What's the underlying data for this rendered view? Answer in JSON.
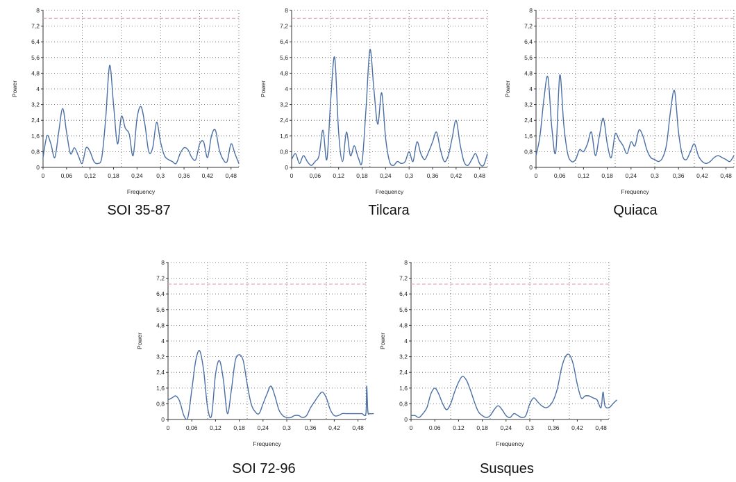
{
  "chart_data": [
    {
      "type": "line",
      "caption": "SOI 35-87",
      "xlabel": "Frequency",
      "ylabel": "Power",
      "xlim": [
        0,
        0.5
      ],
      "ylim": [
        0,
        8
      ],
      "xticks": [
        "0",
        "0,06",
        "0,12",
        "0,18",
        "0,24",
        "0,3",
        "0,36",
        "0,42",
        "0,48"
      ],
      "yticks": [
        "0",
        "0,8",
        "1,6",
        "2,4",
        "3,2",
        "4",
        "4,8",
        "5,6",
        "6,4",
        "7,2",
        "8"
      ],
      "grid": true,
      "threshold": 7.6,
      "series_color": "#4a6fa5",
      "threshold_color": "#e8a0b8",
      "series": [
        {
          "x": [
            0,
            0.01,
            0.02,
            0.03,
            0.04,
            0.05,
            0.06,
            0.07,
            0.08,
            0.09,
            0.1,
            0.11,
            0.12,
            0.13,
            0.14,
            0.15,
            0.16,
            0.17,
            0.18,
            0.19,
            0.2,
            0.21,
            0.22,
            0.23,
            0.24,
            0.25,
            0.26,
            0.27,
            0.28,
            0.29,
            0.3,
            0.31,
            0.32,
            0.33,
            0.34,
            0.35,
            0.36,
            0.37,
            0.38,
            0.39,
            0.4,
            0.41,
            0.42,
            0.43,
            0.44,
            0.45,
            0.46,
            0.47,
            0.48,
            0.49,
            0.5
          ],
          "y": [
            0.5,
            1.6,
            1.2,
            0.5,
            1.8,
            3.0,
            1.8,
            0.7,
            1.0,
            0.6,
            0.2,
            1.0,
            0.8,
            0.3,
            0.2,
            0.5,
            2.5,
            5.2,
            3.2,
            1.2,
            2.6,
            2.0,
            1.7,
            0.6,
            2.5,
            3.1,
            2.2,
            0.8,
            1.0,
            2.3,
            1.3,
            0.6,
            0.4,
            0.3,
            0.2,
            0.7,
            1.0,
            0.9,
            0.5,
            0.4,
            1.2,
            1.3,
            0.5,
            1.6,
            1.9,
            0.9,
            0.4,
            0.3,
            1.2,
            0.7,
            0.2
          ]
        }
      ]
    },
    {
      "type": "line",
      "caption": "Tilcara",
      "xlabel": "Frequency",
      "ylabel": "Power",
      "xlim": [
        0,
        0.5
      ],
      "ylim": [
        0,
        8
      ],
      "xticks": [
        "0",
        "0,06",
        "0,12",
        "0,18",
        "0,24",
        "0,3",
        "0,36",
        "0,42",
        "0,48"
      ],
      "yticks": [
        "0",
        "0,8",
        "1,6",
        "2,4",
        "3,2",
        "4",
        "4,8",
        "5,6",
        "6,4",
        "7,2",
        "8"
      ],
      "grid": true,
      "threshold": 7.6,
      "series_color": "#4a6fa5",
      "threshold_color": "#e8a0b8",
      "series": [
        {
          "x": [
            0,
            0.01,
            0.02,
            0.03,
            0.04,
            0.05,
            0.06,
            0.07,
            0.08,
            0.09,
            0.1,
            0.11,
            0.12,
            0.13,
            0.14,
            0.15,
            0.16,
            0.17,
            0.18,
            0.19,
            0.2,
            0.21,
            0.22,
            0.23,
            0.24,
            0.25,
            0.26,
            0.27,
            0.28,
            0.29,
            0.3,
            0.31,
            0.32,
            0.33,
            0.34,
            0.35,
            0.36,
            0.37,
            0.38,
            0.39,
            0.4,
            0.41,
            0.42,
            0.43,
            0.44,
            0.45,
            0.46,
            0.47,
            0.48,
            0.49,
            0.5
          ],
          "y": [
            0.4,
            0.7,
            0.2,
            0.6,
            0.3,
            0.1,
            0.3,
            0.6,
            1.9,
            0.4,
            3.5,
            5.6,
            1.8,
            0.3,
            1.8,
            0.6,
            1.1,
            0.5,
            0.3,
            3.0,
            6.0,
            4.0,
            2.2,
            3.8,
            1.5,
            0.3,
            0.1,
            0.3,
            0.2,
            0.3,
            0.8,
            0.3,
            1.3,
            0.7,
            0.4,
            0.8,
            1.3,
            1.8,
            0.9,
            0.3,
            0.6,
            1.5,
            2.4,
            1.2,
            0.3,
            0.1,
            0.4,
            0.7,
            0.2,
            0.1,
            0.7
          ]
        }
      ]
    },
    {
      "type": "line",
      "caption": "Quiaca",
      "xlabel": "Frequency",
      "ylabel": "Power",
      "xlim": [
        0,
        0.5
      ],
      "ylim": [
        0,
        8
      ],
      "xticks": [
        "0",
        "0,06",
        "0,12",
        "0,18",
        "0,24",
        "0,3",
        "0,36",
        "0,42",
        "0,48"
      ],
      "yticks": [
        "0",
        "0,8",
        "1,6",
        "2,4",
        "3,2",
        "4",
        "4,8",
        "5,6",
        "6,4",
        "7,2",
        "8"
      ],
      "grid": true,
      "threshold": 7.6,
      "series_color": "#4a6fa5",
      "threshold_color": "#e8a0b8",
      "series": [
        {
          "x": [
            0,
            0.01,
            0.02,
            0.03,
            0.04,
            0.05,
            0.06,
            0.07,
            0.08,
            0.09,
            0.1,
            0.11,
            0.12,
            0.13,
            0.14,
            0.15,
            0.16,
            0.17,
            0.18,
            0.19,
            0.2,
            0.21,
            0.22,
            0.23,
            0.24,
            0.25,
            0.26,
            0.27,
            0.28,
            0.29,
            0.3,
            0.31,
            0.32,
            0.33,
            0.34,
            0.35,
            0.36,
            0.37,
            0.38,
            0.39,
            0.4,
            0.41,
            0.42,
            0.43,
            0.44,
            0.45,
            0.46,
            0.47,
            0.48,
            0.49,
            0.5
          ],
          "y": [
            0.6,
            1.6,
            3.5,
            4.6,
            2.0,
            0.8,
            4.7,
            2.2,
            0.7,
            0.3,
            0.4,
            0.9,
            0.8,
            1.2,
            1.8,
            0.6,
            1.6,
            2.5,
            1.2,
            0.5,
            1.7,
            1.4,
            1.1,
            0.7,
            1.3,
            1.1,
            1.9,
            1.6,
            0.9,
            0.5,
            0.4,
            0.3,
            0.5,
            1.2,
            2.9,
            3.9,
            1.8,
            0.6,
            0.4,
            0.8,
            1.2,
            0.6,
            0.3,
            0.2,
            0.3,
            0.5,
            0.6,
            0.5,
            0.4,
            0.3,
            0.6
          ]
        }
      ]
    },
    {
      "type": "line",
      "caption": "SOI 72-96",
      "xlabel": "Frequency",
      "ylabel": "Power",
      "xlim": [
        0,
        0.5
      ],
      "ylim": [
        0,
        8
      ],
      "xticks": [
        "0",
        "0,06",
        "0,12",
        "0,18",
        "0,24",
        "0,3",
        "0,36",
        "0,42",
        "0,48"
      ],
      "yticks": [
        "0",
        "0,8",
        "1,6",
        "2,4",
        "3,2",
        "4",
        "4,8",
        "5,6",
        "6,4",
        "7,2",
        "8"
      ],
      "grid": true,
      "threshold": 6.9,
      "series_color": "#4a6fa5",
      "threshold_color": "#e8a0b8",
      "series": [
        {
          "x": [
            0,
            0.01,
            0.02,
            0.03,
            0.04,
            0.05,
            0.06,
            0.07,
            0.08,
            0.09,
            0.1,
            0.11,
            0.12,
            0.13,
            0.14,
            0.15,
            0.16,
            0.17,
            0.18,
            0.19,
            0.2,
            0.21,
            0.22,
            0.23,
            0.24,
            0.25,
            0.26,
            0.27,
            0.28,
            0.29,
            0.3,
            0.31,
            0.32,
            0.33,
            0.34,
            0.35,
            0.36,
            0.37,
            0.38,
            0.39,
            0.4,
            0.41,
            0.42,
            0.43,
            0.44,
            0.45,
            0.46,
            0.47,
            0.48,
            0.49,
            0.5,
            0.502,
            0.505,
            0.51,
            0.52
          ],
          "y": [
            1.0,
            1.1,
            1.2,
            0.9,
            0.2,
            0.1,
            1.5,
            3.0,
            3.5,
            2.5,
            0.6,
            0.2,
            2.3,
            3.0,
            2.0,
            0.3,
            1.5,
            3.0,
            3.3,
            3.0,
            1.8,
            0.8,
            0.4,
            0.3,
            0.8,
            1.3,
            1.7,
            1.2,
            0.5,
            0.2,
            0.1,
            0.1,
            0.2,
            0.2,
            0.1,
            0.2,
            0.6,
            0.9,
            1.2,
            1.4,
            1.1,
            0.5,
            0.2,
            0.2,
            0.3,
            0.3,
            0.3,
            0.3,
            0.3,
            0.3,
            0.3,
            1.7,
            0.4,
            0.3,
            0.3
          ]
        }
      ]
    },
    {
      "type": "line",
      "caption": "Susques",
      "xlabel": "Frequency",
      "ylabel": "Power",
      "xlim": [
        0,
        0.5
      ],
      "ylim": [
        0,
        8
      ],
      "xticks": [
        "0",
        "0.06",
        "0.12",
        "0,18",
        "0,24",
        "0,3",
        "0,36",
        "0,42",
        "0,48"
      ],
      "yticks": [
        "0",
        "0,8",
        "1,6",
        "2,4",
        "3,2",
        "4",
        "4,8",
        "5,6",
        "6,4",
        "7,2",
        "8"
      ],
      "grid": true,
      "threshold": 6.9,
      "series_color": "#4a6fa5",
      "threshold_color": "#e8a0b8",
      "series": [
        {
          "x": [
            0,
            0.01,
            0.02,
            0.03,
            0.04,
            0.05,
            0.06,
            0.07,
            0.08,
            0.09,
            0.1,
            0.11,
            0.12,
            0.13,
            0.14,
            0.15,
            0.16,
            0.17,
            0.18,
            0.19,
            0.2,
            0.21,
            0.22,
            0.23,
            0.24,
            0.25,
            0.26,
            0.27,
            0.28,
            0.29,
            0.3,
            0.31,
            0.32,
            0.33,
            0.34,
            0.35,
            0.36,
            0.37,
            0.38,
            0.39,
            0.4,
            0.41,
            0.42,
            0.43,
            0.44,
            0.45,
            0.46,
            0.47,
            0.48,
            0.485,
            0.49,
            0.5,
            0.51,
            0.52
          ],
          "y": [
            0.2,
            0.2,
            0.1,
            0.3,
            0.6,
            1.3,
            1.6,
            1.3,
            0.8,
            0.5,
            0.8,
            1.4,
            1.9,
            2.2,
            2.0,
            1.5,
            0.9,
            0.4,
            0.2,
            0.1,
            0.2,
            0.5,
            0.7,
            0.5,
            0.2,
            0.1,
            0.3,
            0.2,
            0.1,
            0.2,
            0.8,
            1.1,
            0.9,
            0.7,
            0.6,
            0.7,
            1.0,
            1.6,
            2.6,
            3.2,
            3.3,
            2.8,
            1.8,
            1.1,
            1.2,
            1.2,
            1.1,
            1.0,
            0.6,
            1.4,
            0.7,
            0.6,
            0.8,
            1.0
          ]
        }
      ]
    }
  ]
}
